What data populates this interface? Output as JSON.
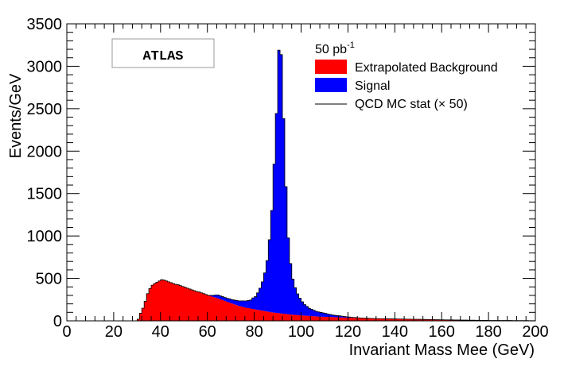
{
  "chart_data": {
    "type": "bar",
    "stacked": true,
    "xlabel": "Invariant Mass Mee (GeV)",
    "ylabel": "Events/GeV",
    "xlim": [
      0,
      200
    ],
    "ylim": [
      0,
      3500
    ],
    "x_ticks": [
      0,
      20,
      40,
      60,
      80,
      100,
      120,
      140,
      160,
      180,
      200
    ],
    "y_ticks": [
      0,
      500,
      1000,
      1500,
      2000,
      2500,
      3000,
      3500
    ],
    "bin_width": 1,
    "x_start": 30,
    "experiment_label": "ATLAS",
    "legend": {
      "header": "50 pb",
      "header_superscript": "-1",
      "placement": "top-right",
      "entries": [
        "Extrapolated Background",
        "Signal",
        "QCD MC stat (× 50)"
      ]
    },
    "series": [
      {
        "name": "Extrapolated Background",
        "color": "#ff0000",
        "values": [
          20,
          90,
          150,
          230,
          320,
          380,
          420,
          440,
          455,
          470,
          485,
          480,
          470,
          460,
          450,
          440,
          430,
          425,
          415,
          405,
          395,
          385,
          375,
          365,
          355,
          345,
          340,
          330,
          320,
          310,
          300,
          290,
          280,
          275,
          265,
          255,
          245,
          235,
          225,
          215,
          205,
          195,
          185,
          175,
          170,
          160,
          155,
          150,
          145,
          140,
          135,
          130,
          125,
          120,
          115,
          110,
          105,
          100,
          97,
          94,
          90,
          87,
          84,
          81,
          78,
          75,
          72,
          70,
          68,
          66,
          64,
          62,
          60,
          58,
          56,
          54,
          52,
          50,
          49,
          48,
          47,
          46,
          45,
          44,
          43,
          42,
          41,
          40,
          39,
          38,
          37,
          36,
          35,
          34,
          33,
          32,
          31,
          30,
          29,
          28,
          28,
          27,
          27,
          26,
          26,
          25,
          25,
          24,
          24,
          23,
          23,
          22,
          22,
          21,
          21,
          20,
          20,
          19,
          19,
          18,
          18,
          17,
          17,
          16,
          16,
          15,
          15,
          14,
          14,
          13,
          13,
          12,
          12,
          11,
          11,
          10,
          10,
          10,
          9,
          9,
          9,
          8,
          8,
          8,
          7,
          7,
          7,
          6,
          6,
          6,
          5,
          5,
          5,
          5,
          5,
          4,
          4,
          4,
          4,
          4,
          3,
          3,
          3,
          3,
          3,
          3,
          3,
          2,
          2,
          2
        ]
      },
      {
        "name": "Signal",
        "color": "#0000ff",
        "values": [
          0,
          0,
          0,
          0,
          0,
          0,
          0,
          0,
          0,
          0,
          0,
          0,
          0,
          0,
          0,
          0,
          0,
          0,
          0,
          0,
          0,
          0,
          0,
          0,
          0,
          0,
          0,
          0,
          0,
          0,
          0,
          10,
          20,
          30,
          40,
          40,
          40,
          40,
          40,
          45,
          45,
          50,
          55,
          60,
          65,
          75,
          80,
          90,
          100,
          130,
          150,
          200,
          260,
          340,
          450,
          600,
          850,
          1200,
          1750,
          2350,
          3100,
          3050,
          2300,
          1500,
          900,
          600,
          420,
          320,
          250,
          200,
          160,
          130,
          110,
          90,
          80,
          70,
          60,
          55,
          50,
          45,
          40,
          35,
          30,
          25,
          22,
          20,
          18,
          15,
          12,
          10,
          8,
          6,
          5,
          4,
          3,
          2,
          2,
          1,
          1,
          1,
          0,
          0,
          0,
          0,
          0,
          0,
          0,
          0,
          0,
          0,
          0,
          0,
          0,
          0,
          0,
          0,
          0,
          0,
          0,
          0,
          0,
          0,
          0,
          0,
          0,
          0,
          0,
          0,
          0,
          0,
          0,
          0,
          0,
          0,
          0,
          0,
          0,
          0,
          0,
          0,
          0,
          0,
          0,
          0,
          0,
          0,
          0,
          0,
          0,
          0,
          0,
          0,
          0,
          0,
          0,
          0,
          0,
          0,
          0,
          0,
          0,
          0,
          0,
          0,
          0,
          0,
          0,
          0,
          0,
          0,
          0,
          0,
          0,
          0,
          0
        ]
      }
    ]
  }
}
